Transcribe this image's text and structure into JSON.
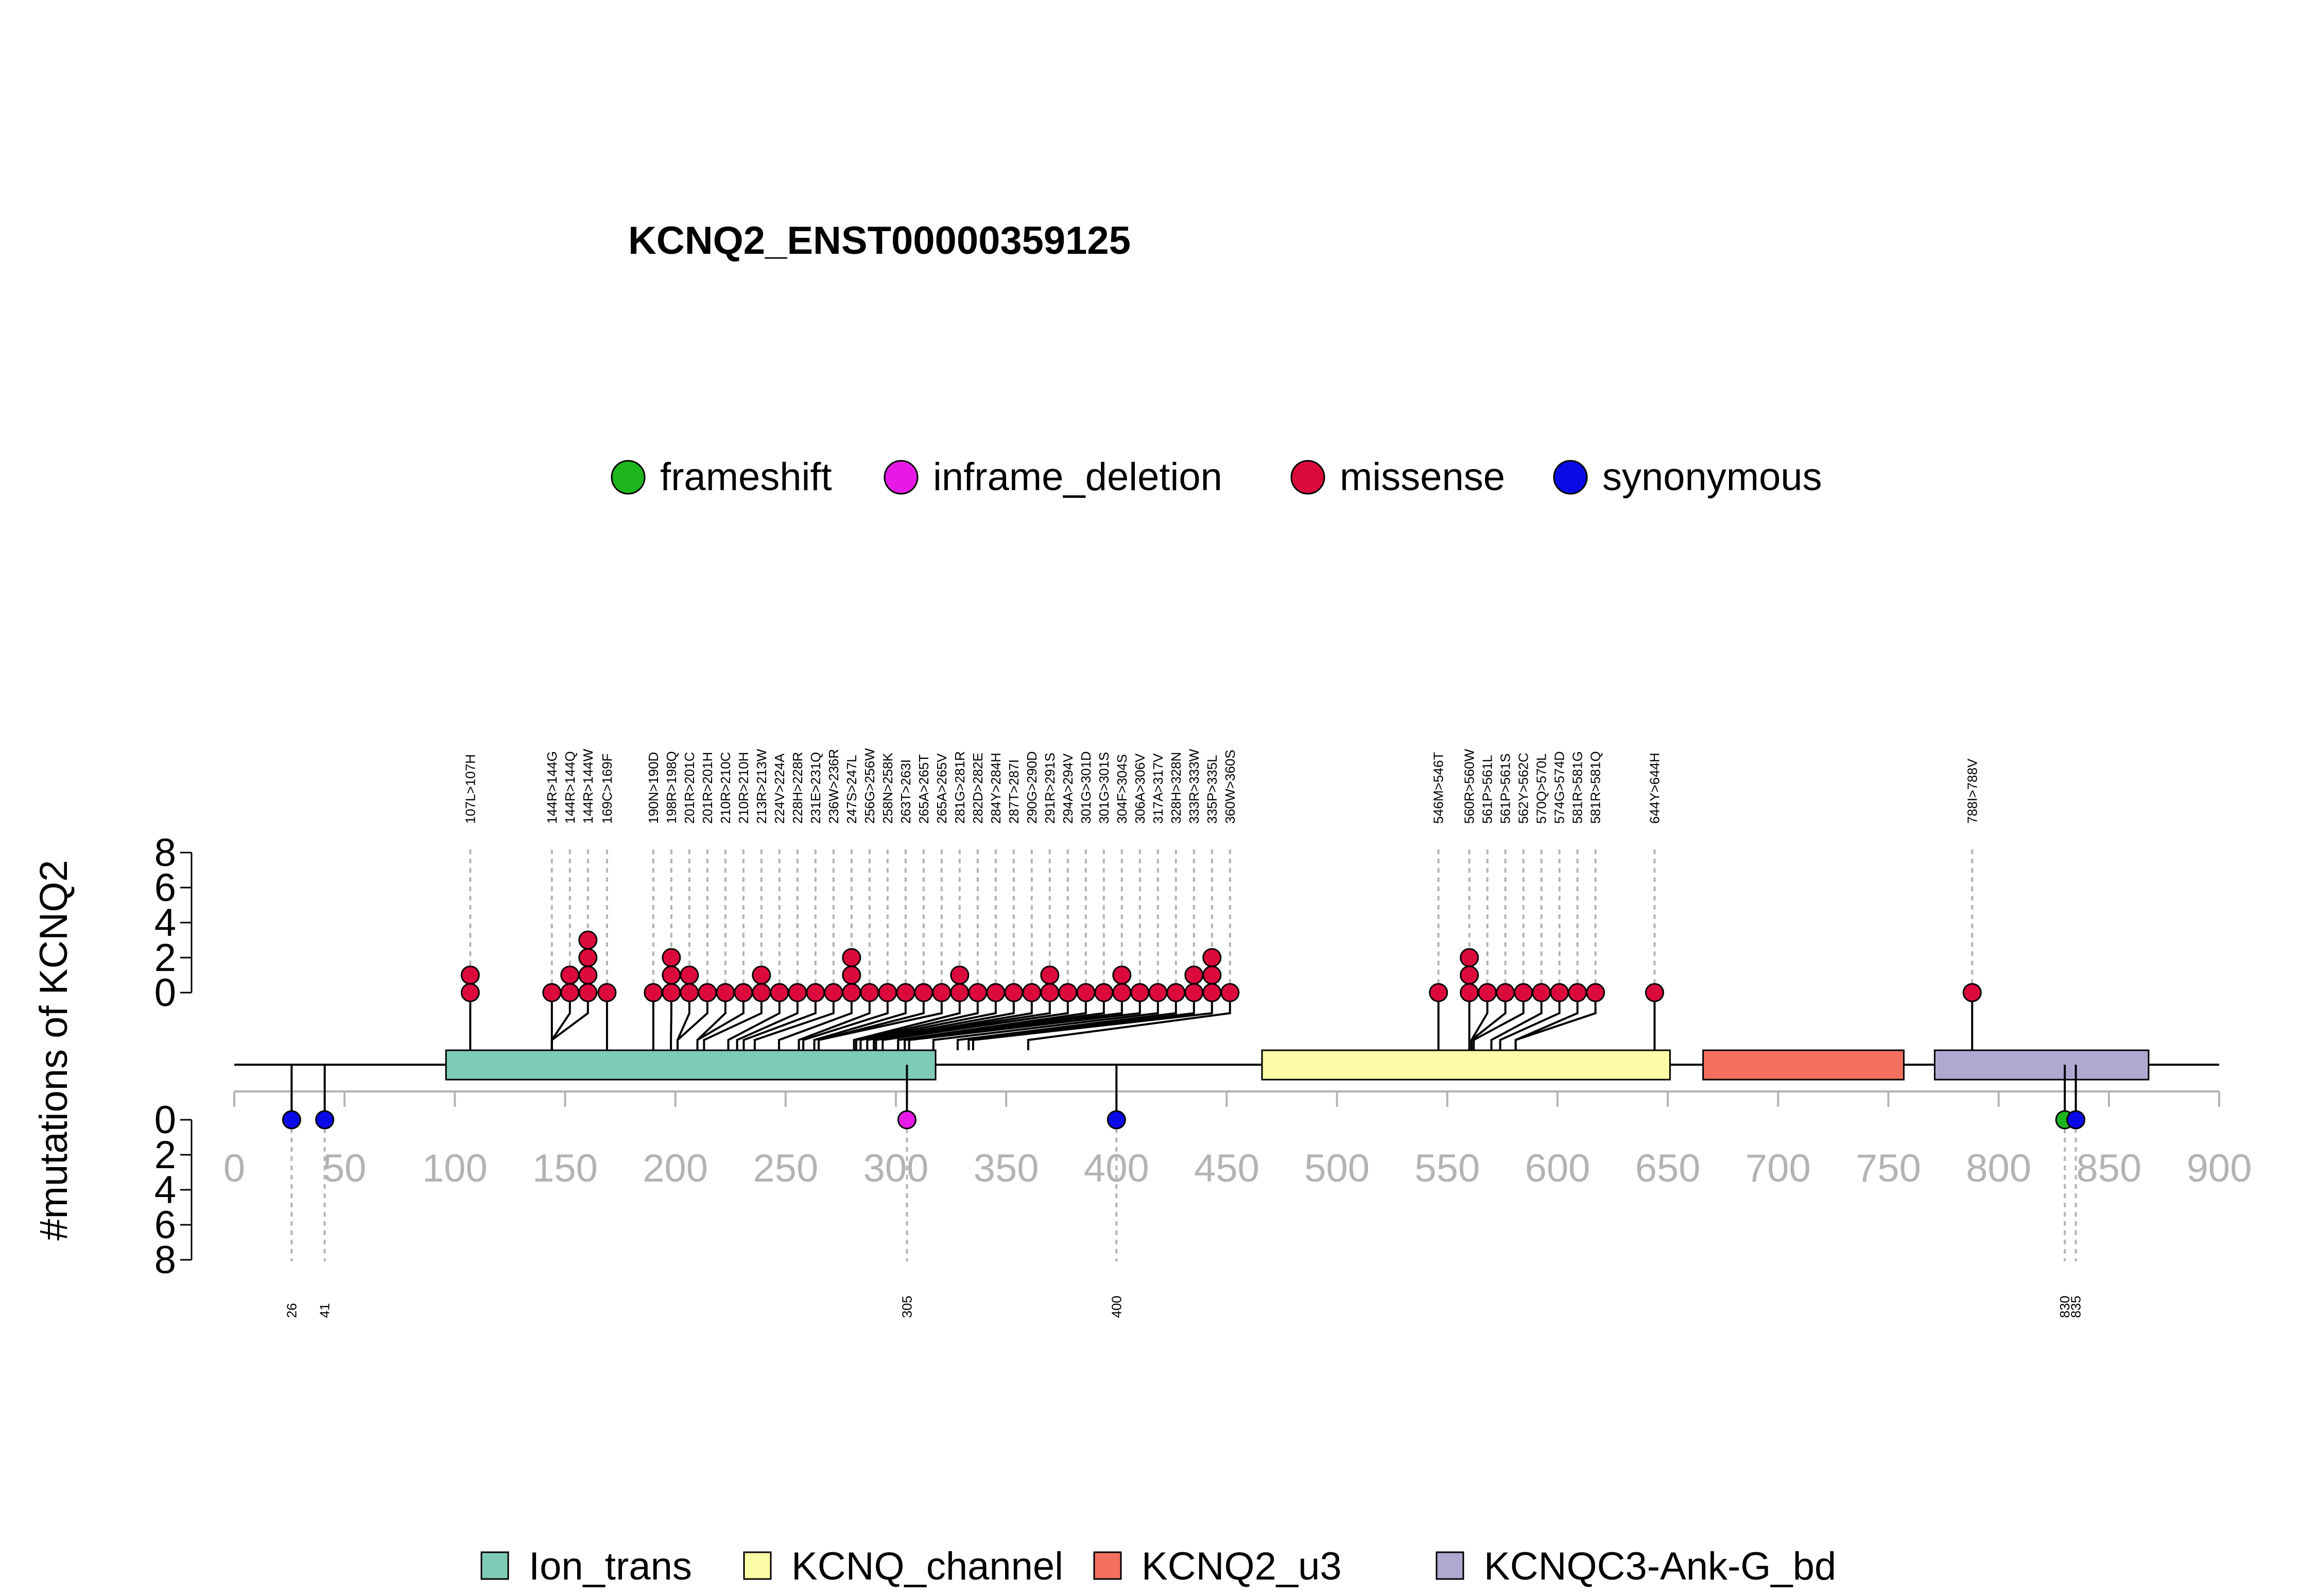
{
  "chart_data": {
    "type": "lollipop",
    "title": "KCNQ2_ENST00000359125",
    "ylabel": "#mutations of KCNQ2",
    "xlim": [
      0,
      900
    ],
    "x_ticks": [
      0,
      50,
      100,
      150,
      200,
      250,
      300,
      350,
      400,
      450,
      500,
      550,
      600,
      650,
      700,
      750,
      800,
      850,
      900
    ],
    "y_top_ticks": [
      0,
      2,
      4,
      6,
      8
    ],
    "y_bottom_ticks": [
      0,
      2,
      4,
      6,
      8
    ],
    "protein_length": 900,
    "legend_mutation": [
      {
        "name": "frameshift",
        "color": "#1cb51c"
      },
      {
        "name": "inframe_deletion",
        "color": "#e619e6"
      },
      {
        "name": "missense",
        "color": "#dc0a3c"
      },
      {
        "name": "synonymous",
        "color": "#0a0ae6"
      }
    ],
    "legend_domain": [
      {
        "name": "Ion_trans",
        "color": "#7ecbb8"
      },
      {
        "name": "KCNQ_channel",
        "color": "#fdfca6"
      },
      {
        "name": "KCNQ2_u3",
        "color": "#f4705e"
      },
      {
        "name": "KCNQC3-Ank-G_bd",
        "color": "#b1a8d2"
      }
    ],
    "domains": [
      {
        "name": "Ion_trans",
        "start": 96,
        "end": 318
      },
      {
        "name": "KCNQ_channel",
        "start": 466,
        "end": 651
      },
      {
        "name": "KCNQ2_u3",
        "start": 666,
        "end": 757
      },
      {
        "name": "KCNQC3-Ank-G_bd",
        "start": 771,
        "end": 868
      }
    ],
    "top_mutations": [
      {
        "label": "107L>107H",
        "pos": 107,
        "count": 2,
        "type": "missense"
      },
      {
        "label": "144R>144G",
        "pos": 144,
        "count": 1,
        "type": "missense"
      },
      {
        "label": "144R>144Q",
        "pos": 144,
        "count": 2,
        "type": "missense"
      },
      {
        "label": "144R>144W",
        "pos": 144,
        "count": 4,
        "type": "missense"
      },
      {
        "label": "169C>169F",
        "pos": 169,
        "count": 1,
        "type": "missense"
      },
      {
        "label": "190N>190D",
        "pos": 190,
        "count": 1,
        "type": "missense"
      },
      {
        "label": "198R>198Q",
        "pos": 198,
        "count": 3,
        "type": "missense"
      },
      {
        "label": "201R>201C",
        "pos": 201,
        "count": 2,
        "type": "missense"
      },
      {
        "label": "201R>201H",
        "pos": 201,
        "count": 1,
        "type": "missense"
      },
      {
        "label": "210R>210C",
        "pos": 210,
        "count": 1,
        "type": "missense"
      },
      {
        "label": "210R>210H",
        "pos": 210,
        "count": 1,
        "type": "missense"
      },
      {
        "label": "213R>213W",
        "pos": 213,
        "count": 2,
        "type": "missense"
      },
      {
        "label": "224V>224A",
        "pos": 224,
        "count": 1,
        "type": "missense"
      },
      {
        "label": "228H>228R",
        "pos": 228,
        "count": 1,
        "type": "missense"
      },
      {
        "label": "231E>231Q",
        "pos": 231,
        "count": 1,
        "type": "missense"
      },
      {
        "label": "236W>236R",
        "pos": 236,
        "count": 1,
        "type": "missense"
      },
      {
        "label": "247S>247L",
        "pos": 247,
        "count": 3,
        "type": "missense"
      },
      {
        "label": "256G>256W",
        "pos": 256,
        "count": 1,
        "type": "missense"
      },
      {
        "label": "258N>258K",
        "pos": 258,
        "count": 1,
        "type": "missense"
      },
      {
        "label": "263T>263I",
        "pos": 263,
        "count": 1,
        "type": "missense"
      },
      {
        "label": "265A>265T",
        "pos": 265,
        "count": 1,
        "type": "missense"
      },
      {
        "label": "265A>265V",
        "pos": 265,
        "count": 1,
        "type": "missense"
      },
      {
        "label": "281G>281R",
        "pos": 281,
        "count": 2,
        "type": "missense"
      },
      {
        "label": "282D>282E",
        "pos": 282,
        "count": 1,
        "type": "missense"
      },
      {
        "label": "284Y>284H",
        "pos": 284,
        "count": 1,
        "type": "missense"
      },
      {
        "label": "287T>287I",
        "pos": 287,
        "count": 1,
        "type": "missense"
      },
      {
        "label": "290G>290D",
        "pos": 290,
        "count": 1,
        "type": "missense"
      },
      {
        "label": "291R>291S",
        "pos": 291,
        "count": 2,
        "type": "missense"
      },
      {
        "label": "294A>294V",
        "pos": 294,
        "count": 1,
        "type": "missense"
      },
      {
        "label": "301G>301D",
        "pos": 301,
        "count": 1,
        "type": "missense"
      },
      {
        "label": "301G>301S",
        "pos": 301,
        "count": 1,
        "type": "missense"
      },
      {
        "label": "304F>304S",
        "pos": 304,
        "count": 2,
        "type": "missense"
      },
      {
        "label": "306A>306V",
        "pos": 306,
        "count": 1,
        "type": "missense"
      },
      {
        "label": "317A>317V",
        "pos": 317,
        "count": 1,
        "type": "missense"
      },
      {
        "label": "328H>328N",
        "pos": 328,
        "count": 1,
        "type": "missense"
      },
      {
        "label": "333R>333W",
        "pos": 333,
        "count": 2,
        "type": "missense"
      },
      {
        "label": "335P>335L",
        "pos": 335,
        "count": 3,
        "type": "missense"
      },
      {
        "label": "360W>360S",
        "pos": 360,
        "count": 1,
        "type": "missense"
      },
      {
        "label": "546M>546T",
        "pos": 546,
        "count": 1,
        "type": "missense"
      },
      {
        "label": "560R>560W",
        "pos": 560,
        "count": 3,
        "type": "missense"
      },
      {
        "label": "561P>561L",
        "pos": 561,
        "count": 1,
        "type": "missense"
      },
      {
        "label": "561P>561S",
        "pos": 561,
        "count": 1,
        "type": "missense"
      },
      {
        "label": "562Y>562C",
        "pos": 562,
        "count": 1,
        "type": "missense"
      },
      {
        "label": "570Q>570L",
        "pos": 570,
        "count": 1,
        "type": "missense"
      },
      {
        "label": "574G>574D",
        "pos": 574,
        "count": 1,
        "type": "missense"
      },
      {
        "label": "581R>581G",
        "pos": 581,
        "count": 1,
        "type": "missense"
      },
      {
        "label": "581R>581Q",
        "pos": 581,
        "count": 1,
        "type": "missense"
      },
      {
        "label": "644Y>644H",
        "pos": 644,
        "count": 1,
        "type": "missense"
      },
      {
        "label": "788I>788V",
        "pos": 788,
        "count": 1,
        "type": "missense"
      }
    ],
    "bottom_mutations": [
      {
        "label": "26",
        "pos": 26,
        "count": 1,
        "type": "synonymous"
      },
      {
        "label": "41",
        "pos": 41,
        "count": 1,
        "type": "synonymous"
      },
      {
        "label": "305",
        "pos": 305,
        "count": 1,
        "type": "inframe_deletion"
      },
      {
        "label": "400",
        "pos": 400,
        "count": 1,
        "type": "synonymous"
      },
      {
        "label": "830",
        "pos": 830,
        "count": 1,
        "type": "frameshift"
      },
      {
        "label": "835",
        "pos": 835,
        "count": 1,
        "type": "synonymous"
      }
    ]
  }
}
